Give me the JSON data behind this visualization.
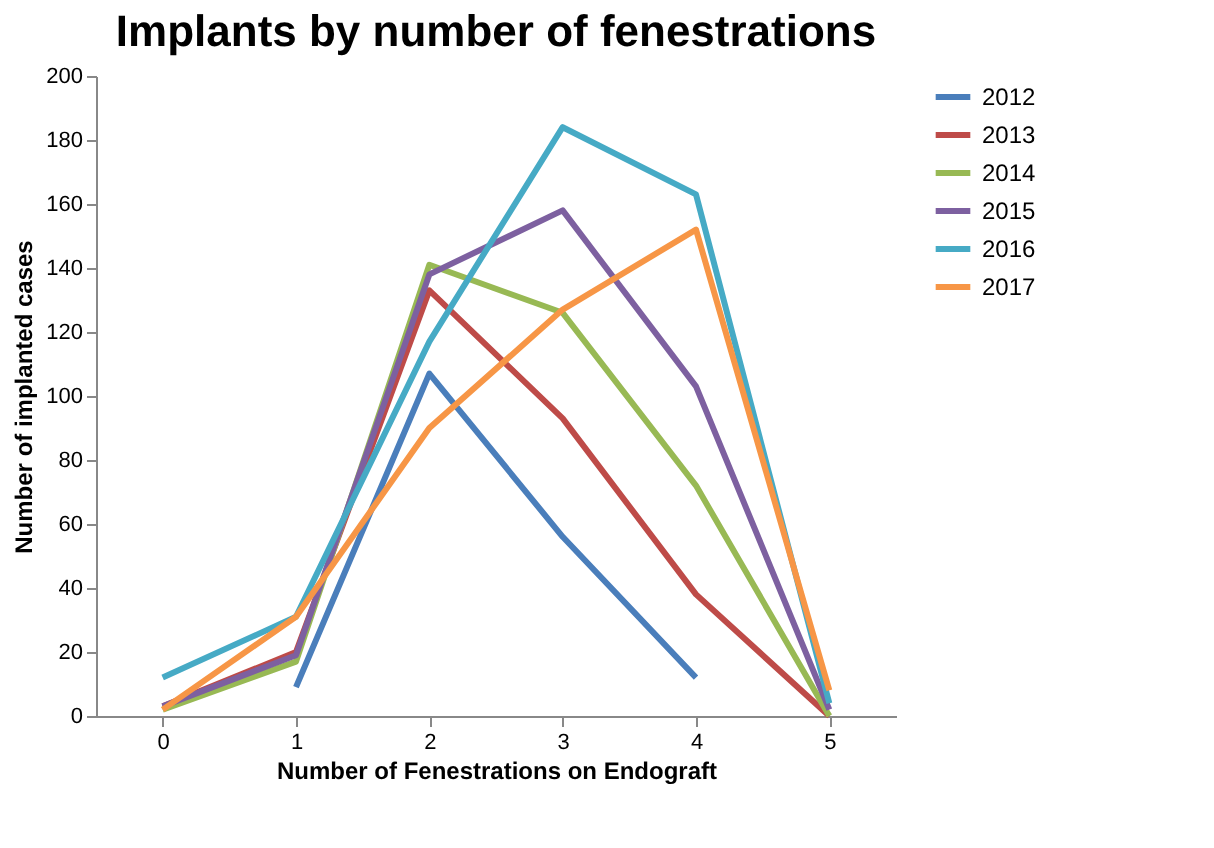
{
  "chart_data": {
    "type": "line",
    "title": "Implants by number of fenestrations",
    "xlabel": "Number of Fenestrations on Endograft",
    "ylabel": "Number of implanted cases",
    "x": [
      0,
      1,
      2,
      3,
      4,
      5
    ],
    "xlim": [
      -0.5,
      5.5
    ],
    "xticks": [
      0,
      1,
      2,
      3,
      4,
      5
    ],
    "ylim": [
      0,
      200
    ],
    "yticks": [
      0,
      20,
      40,
      60,
      80,
      100,
      120,
      140,
      160,
      180,
      200
    ],
    "grid": false,
    "legend": "right",
    "marker": "none",
    "line_style": "solid",
    "series": [
      {
        "name": "2012",
        "color": "#4a7ebb",
        "values": [
          null,
          9,
          107,
          56,
          12,
          null
        ]
      },
      {
        "name": "2013",
        "color": "#be4b48",
        "values": [
          3,
          20,
          133,
          93,
          38,
          0
        ]
      },
      {
        "name": "2014",
        "color": "#98b954",
        "values": [
          2,
          17,
          141,
          126,
          72,
          0
        ]
      },
      {
        "name": "2015",
        "color": "#7d60a0",
        "values": [
          3,
          19,
          138,
          158,
          103,
          2
        ]
      },
      {
        "name": "2016",
        "color": "#46aac5",
        "values": [
          12,
          31,
          117,
          184,
          163,
          4
        ]
      },
      {
        "name": "2017",
        "color": "#f79646",
        "values": [
          2,
          31,
          90,
          127,
          152,
          8
        ]
      }
    ]
  }
}
